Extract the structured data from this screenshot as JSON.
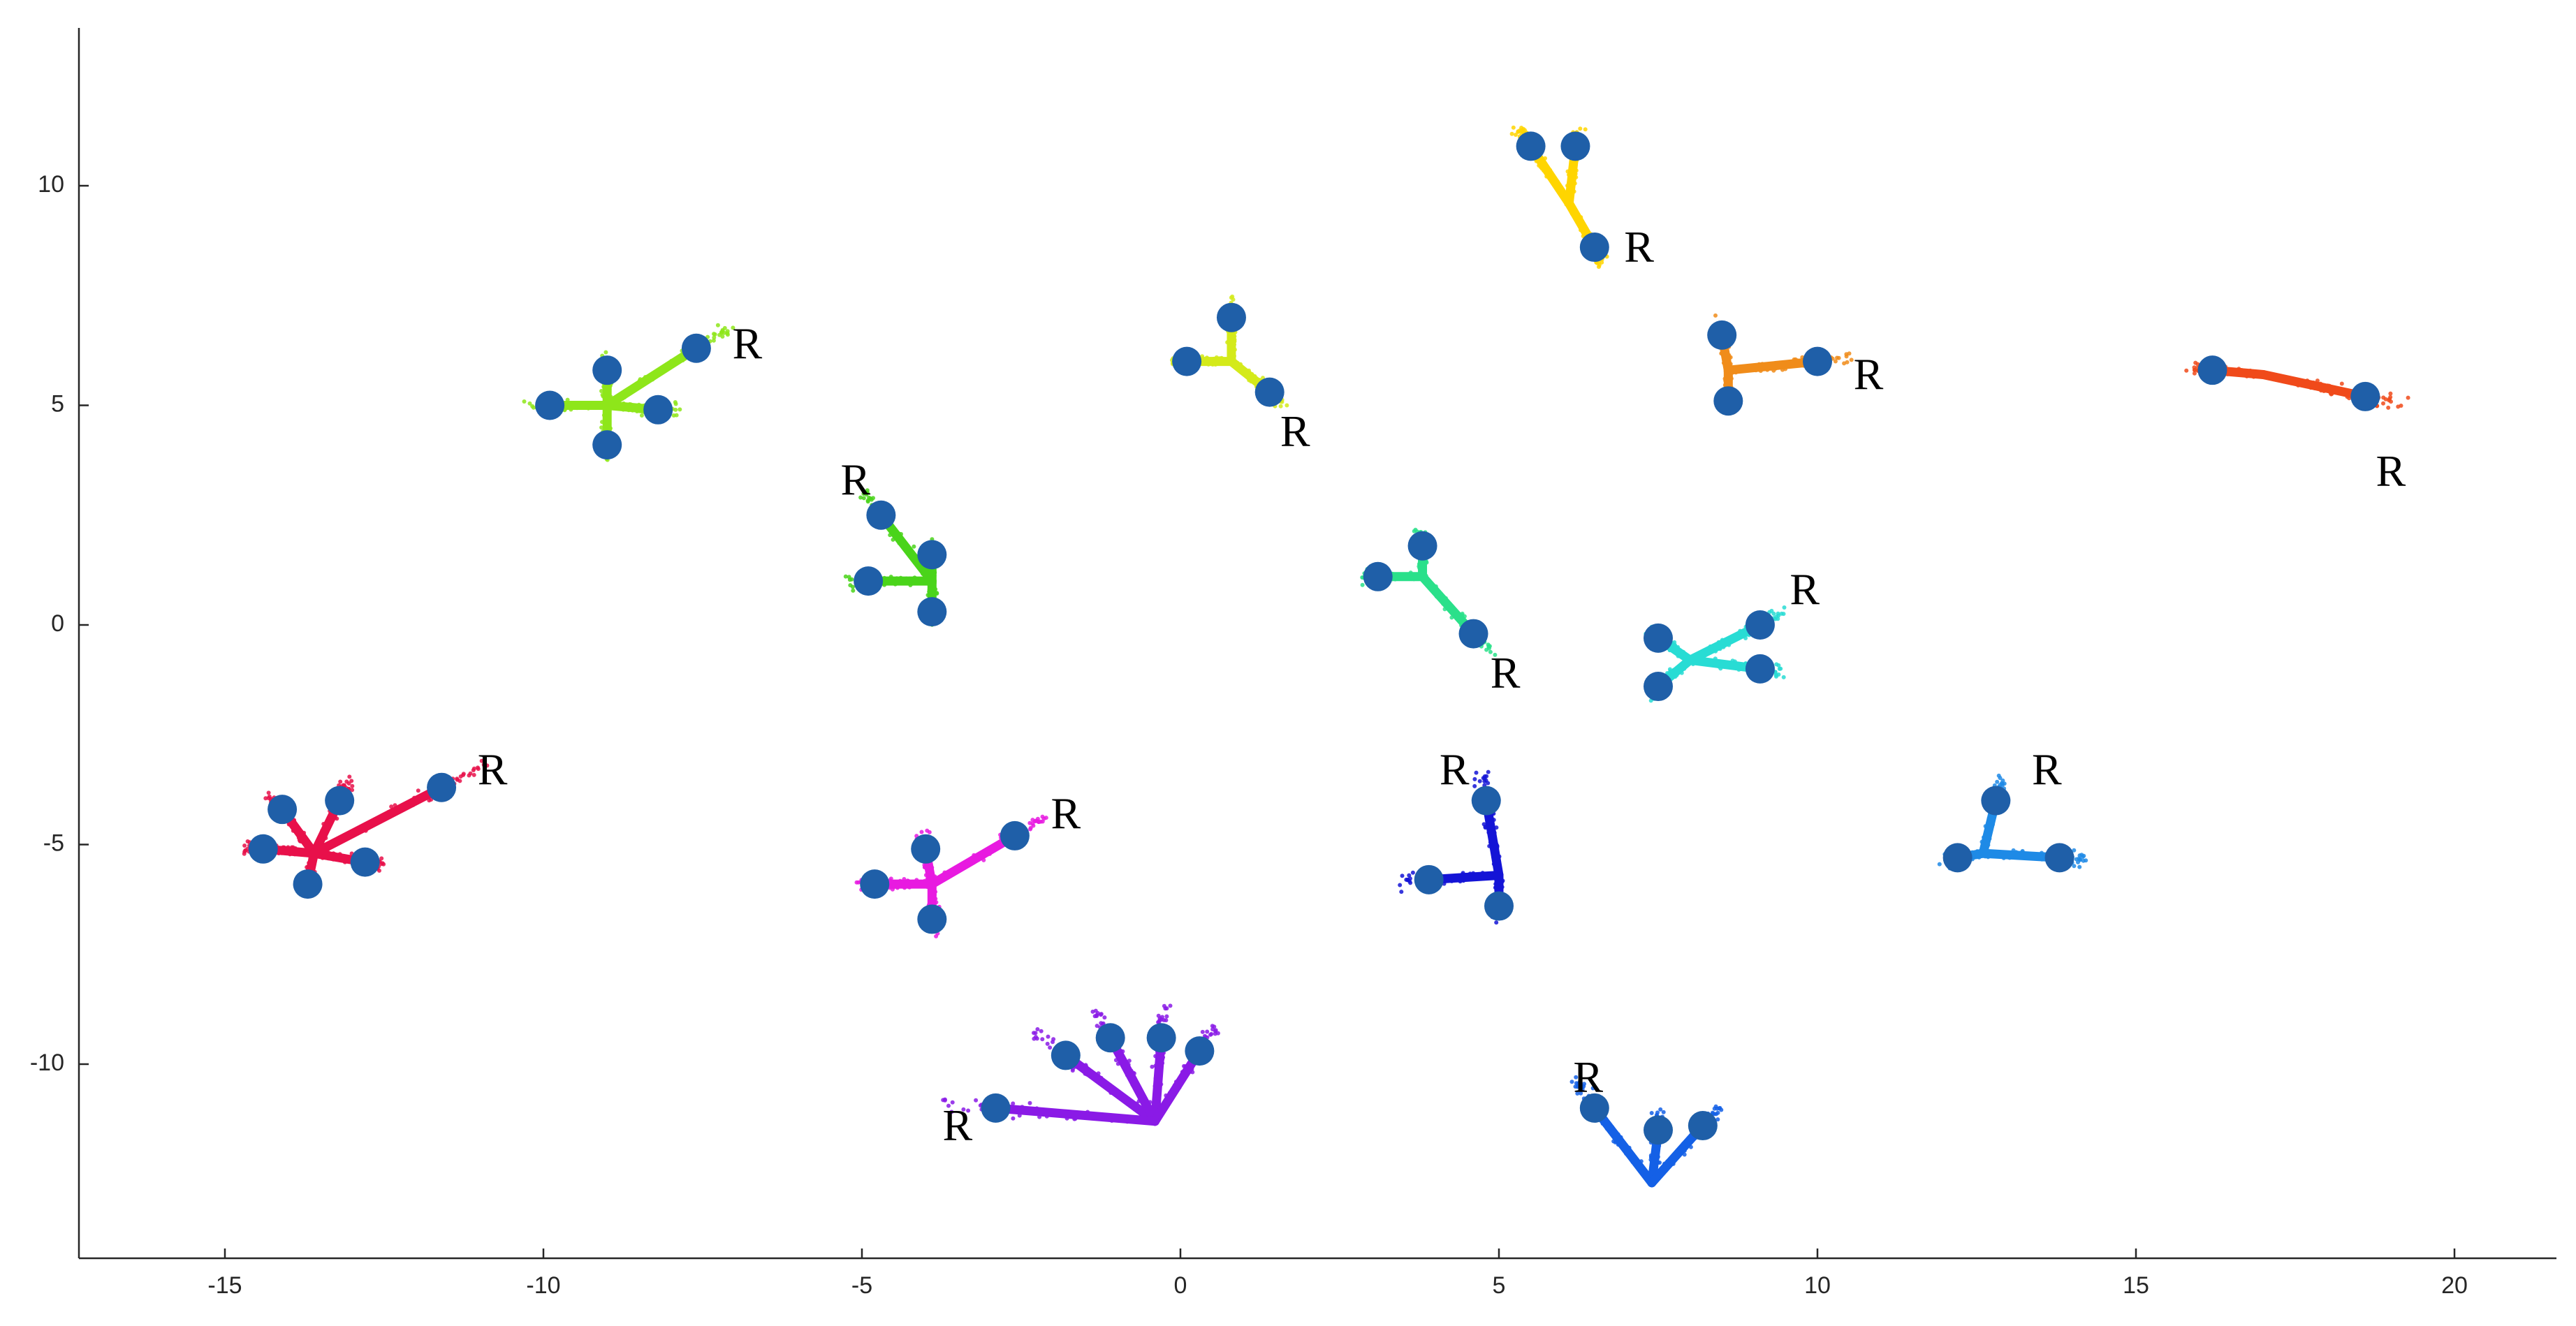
{
  "chart_data": {
    "type": "scatter",
    "title": "",
    "xlabel": "",
    "ylabel": "",
    "xlim": [
      -17.5,
      21.5
    ],
    "ylim": [
      -14.5,
      13.5
    ],
    "xticks": [
      -15,
      -10,
      -5,
      0,
      5,
      10,
      15,
      20
    ],
    "yticks": [
      -10,
      -5,
      0,
      5,
      10
    ],
    "grid": false,
    "legend": "none",
    "marker_color": "#1f5fa8",
    "label_text": "R",
    "groups": [
      {
        "color": "#ffd500",
        "center": [
          6.1,
          9.6
        ],
        "joints": [
          [
            5.5,
            10.9
          ],
          [
            6.2,
            10.9
          ],
          [
            6.5,
            8.6
          ]
        ],
        "r_joint": 2,
        "r_label": [
          7.2,
          8.5
        ]
      },
      {
        "color": "#f08c1a",
        "center": [
          8.6,
          5.8
        ],
        "joints": [
          [
            8.5,
            6.6
          ],
          [
            10.0,
            6.0
          ],
          [
            8.6,
            5.1
          ]
        ],
        "r_joint": 1,
        "r_label": [
          10.8,
          5.6
        ]
      },
      {
        "color": "#f04a1a",
        "center": [
          17.0,
          5.7
        ],
        "joints": [
          [
            16.2,
            5.8
          ],
          [
            18.6,
            5.2
          ]
        ],
        "r_joint": 1,
        "r_label": [
          19.0,
          3.4
        ]
      },
      {
        "color": "#d4ea1a",
        "center": [
          0.8,
          6.0
        ],
        "joints": [
          [
            0.1,
            6.0
          ],
          [
            0.8,
            7.0
          ],
          [
            1.4,
            5.3
          ]
        ],
        "r_joint": 2,
        "r_label": [
          1.8,
          4.3
        ]
      },
      {
        "color": "#8ee61a",
        "center": [
          -9.0,
          5.0
        ],
        "joints": [
          [
            -9.9,
            5.0
          ],
          [
            -9.0,
            5.8
          ],
          [
            -8.2,
            4.9
          ],
          [
            -9.0,
            4.1
          ],
          [
            -7.6,
            6.3
          ]
        ],
        "r_joint": 4,
        "r_label": [
          -6.8,
          6.3
        ]
      },
      {
        "color": "#4ad41a",
        "center": [
          -3.9,
          1.0
        ],
        "joints": [
          [
            -4.7,
            2.5
          ],
          [
            -4.9,
            1.0
          ],
          [
            -3.9,
            1.6
          ],
          [
            -3.9,
            0.3
          ]
        ],
        "r_joint": 0,
        "r_label": [
          -5.1,
          3.2
        ]
      },
      {
        "color": "#2ae08a",
        "center": [
          3.8,
          1.1
        ],
        "joints": [
          [
            3.1,
            1.1
          ],
          [
            3.8,
            1.8
          ],
          [
            4.6,
            -0.2
          ]
        ],
        "r_joint": 2,
        "r_label": [
          5.1,
          -1.2
        ]
      },
      {
        "color": "#28dcd4",
        "center": [
          8.0,
          -0.8
        ],
        "joints": [
          [
            7.5,
            -0.3
          ],
          [
            9.1,
            0.0
          ],
          [
            7.5,
            -1.4
          ],
          [
            9.1,
            -1.0
          ]
        ],
        "r_joint": 1,
        "r_label": [
          9.8,
          0.7
        ]
      },
      {
        "color": "#e8104a",
        "center": [
          -13.6,
          -5.2
        ],
        "joints": [
          [
            -14.1,
            -4.2
          ],
          [
            -13.2,
            -4.0
          ],
          [
            -14.4,
            -5.1
          ],
          [
            -12.8,
            -5.4
          ],
          [
            -13.7,
            -5.9
          ],
          [
            -11.6,
            -3.7
          ]
        ],
        "r_joint": 5,
        "r_label": [
          -10.8,
          -3.4
        ]
      },
      {
        "color": "#e81ae0",
        "center": [
          -3.9,
          -5.9
        ],
        "joints": [
          [
            -4.0,
            -5.1
          ],
          [
            -4.8,
            -5.9
          ],
          [
            -3.9,
            -6.7
          ],
          [
            -2.6,
            -4.8
          ]
        ],
        "r_joint": 3,
        "r_label": [
          -1.8,
          -4.4
        ]
      },
      {
        "color": "#1414d6",
        "center": [
          5.0,
          -5.7
        ],
        "joints": [
          [
            4.8,
            -4.0
          ],
          [
            3.9,
            -5.8
          ],
          [
            5.0,
            -6.4
          ]
        ],
        "r_joint": 0,
        "r_label": [
          4.3,
          -3.4
        ]
      },
      {
        "color": "#1e8ae6",
        "center": [
          12.6,
          -5.2
        ],
        "joints": [
          [
            12.2,
            -5.3
          ],
          [
            13.8,
            -5.3
          ],
          [
            12.8,
            -4.0
          ]
        ],
        "r_joint": 2,
        "r_label": [
          13.6,
          -3.4
        ]
      },
      {
        "color": "#8a1ae6",
        "center": [
          -0.4,
          -11.3
        ],
        "joints": [
          [
            -1.8,
            -9.8
          ],
          [
            -1.1,
            -9.4
          ],
          [
            -0.3,
            -9.4
          ],
          [
            0.3,
            -9.7
          ],
          [
            -2.9,
            -11.0
          ]
        ],
        "r_joint": 4,
        "r_label": [
          -3.5,
          -11.5
        ]
      },
      {
        "color": "#1460e6",
        "center": [
          7.4,
          -12.7
        ],
        "joints": [
          [
            6.5,
            -11.0
          ],
          [
            7.5,
            -11.5
          ],
          [
            8.2,
            -11.4
          ]
        ],
        "r_joint": 0,
        "r_label": [
          6.4,
          -10.4
        ]
      }
    ]
  }
}
